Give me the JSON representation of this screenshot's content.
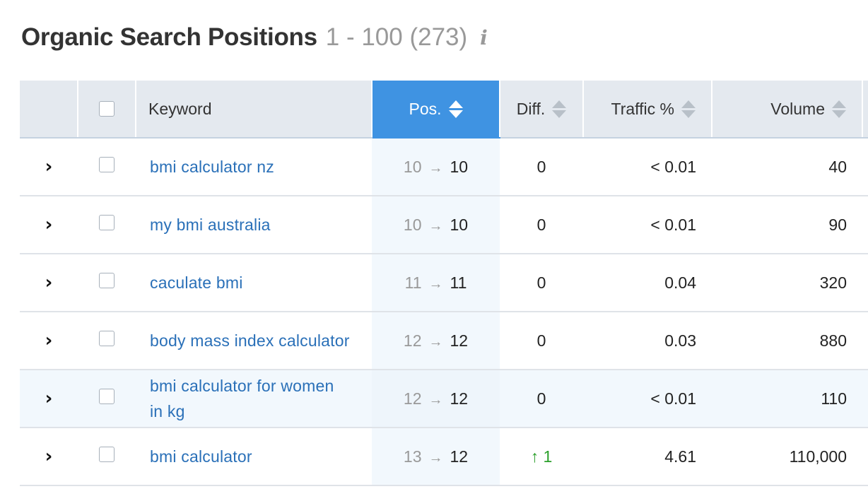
{
  "header": {
    "title": "Organic Search Positions",
    "range": "1 - 100 (273)",
    "info_glyph": "i"
  },
  "table": {
    "columns": {
      "keyword": "Keyword",
      "pos": "Pos.",
      "diff": "Diff.",
      "traffic": "Traffic %",
      "volume": "Volume"
    },
    "rows": [
      {
        "keyword": "bmi calculator nz",
        "pos_prev": "10",
        "pos_cur": "10",
        "diff": "0",
        "traffic": "< 0.01",
        "volume": "40"
      },
      {
        "keyword": "my bmi australia",
        "pos_prev": "10",
        "pos_cur": "10",
        "diff": "0",
        "traffic": "< 0.01",
        "volume": "90"
      },
      {
        "keyword": "caculate bmi",
        "pos_prev": "11",
        "pos_cur": "11",
        "diff": "0",
        "traffic": "0.04",
        "volume": "320"
      },
      {
        "keyword": "body mass index calculator",
        "pos_prev": "12",
        "pos_cur": "12",
        "diff": "0",
        "traffic": "0.03",
        "volume": "880"
      },
      {
        "keyword": "bmi calculator for women in kg",
        "pos_prev": "12",
        "pos_cur": "12",
        "diff": "0",
        "traffic": "< 0.01",
        "volume": "110"
      },
      {
        "keyword": "bmi calculator",
        "pos_prev": "13",
        "pos_cur": "12",
        "diff": "↑ 1",
        "traffic": "4.61",
        "volume": "110,000"
      }
    ]
  },
  "glyphs": {
    "expand": "›",
    "pos_arrow": "→"
  },
  "colors": {
    "accent": "#3f93e2",
    "link": "#2a70b8",
    "positive": "#2ca02c"
  }
}
